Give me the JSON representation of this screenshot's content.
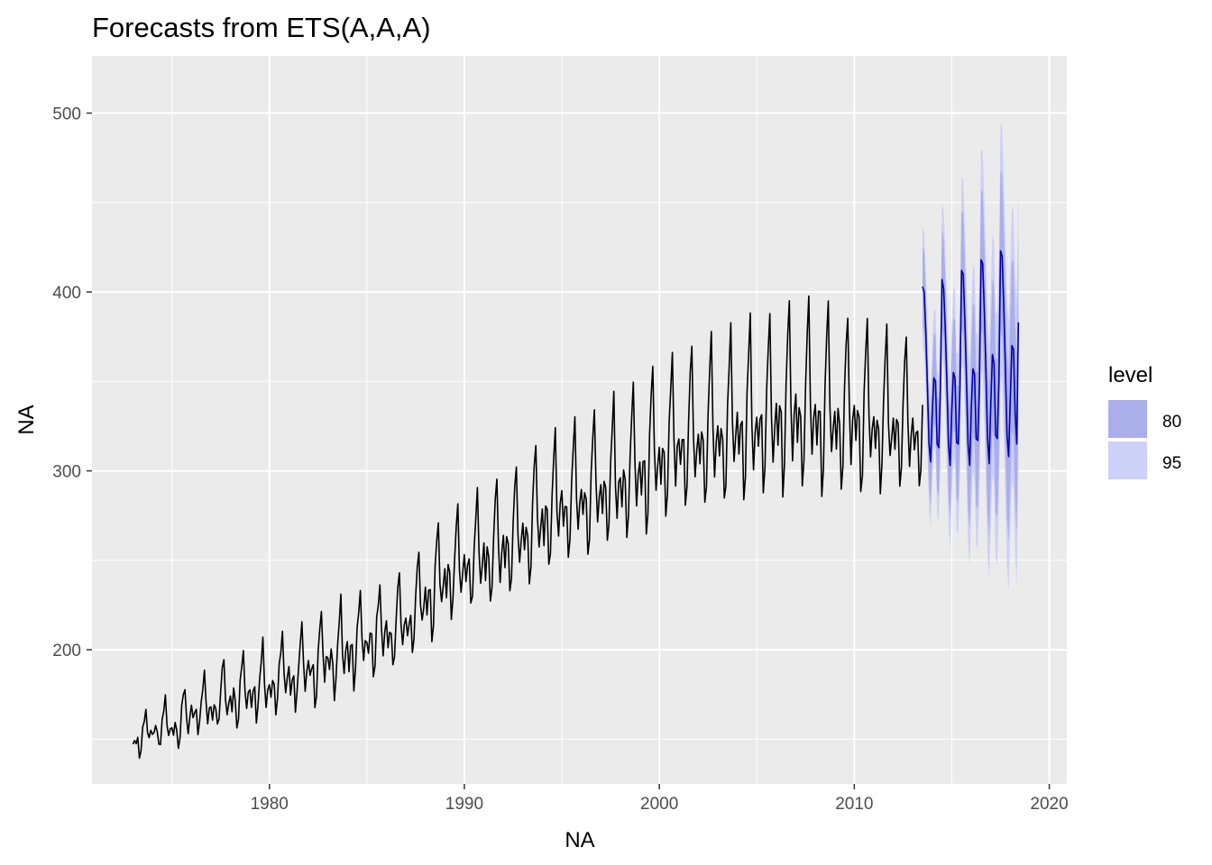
{
  "chart_data": {
    "type": "line",
    "title": "Forecasts from ETS(A,A,A)",
    "xlabel": "NA",
    "ylabel": "NA",
    "xlim": [
      1970.9,
      2020.9
    ],
    "ylim": [
      125,
      532
    ],
    "x_ticks": [
      1980,
      1990,
      2000,
      2010,
      2020
    ],
    "x_tick_labels": [
      "1980",
      "1990",
      "2000",
      "2010",
      "2020"
    ],
    "y_ticks": [
      200,
      300,
      400,
      500
    ],
    "y_tick_labels": [
      "200",
      "300",
      "400",
      "500"
    ],
    "y_minor_ticks": [
      150,
      250,
      350,
      450
    ],
    "x_minor_ticks": [
      1975,
      1985,
      1995,
      2005,
      2015
    ],
    "grid": true,
    "legend": {
      "title": "level",
      "position": "right",
      "entries": [
        {
          "label": "80",
          "color": "#aaaeea"
        },
        {
          "label": "95",
          "color": "#cdd0f7"
        }
      ]
    },
    "colors": {
      "panel_background": "#ebebeb",
      "gridline": "#ffffff",
      "history_line": "#000000",
      "forecast_line": "#0000aa",
      "band_80": "#aaaeea",
      "band_95": "#cdd0f7"
    },
    "history": {
      "start": 1973.0,
      "frequency": 12,
      "monthly_pattern": [
        161,
        154,
        160,
        159,
        146,
        150,
        164,
        172,
        178,
        160,
        152,
        158
      ],
      "anchors": [
        {
          "x": 1973.0,
          "level": 150,
          "amplitude": 0.5
        },
        {
          "x": 1975.0,
          "level": 158,
          "amplitude": 0.55
        },
        {
          "x": 1978.0,
          "level": 175,
          "amplitude": 0.75
        },
        {
          "x": 1981.0,
          "level": 185,
          "amplitude": 0.9
        },
        {
          "x": 1984.0,
          "level": 200,
          "amplitude": 1.0
        },
        {
          "x": 1987.0,
          "level": 215,
          "amplitude": 1.1
        },
        {
          "x": 1989.0,
          "level": 242,
          "amplitude": 1.15
        },
        {
          "x": 1992.0,
          "level": 258,
          "amplitude": 1.35
        },
        {
          "x": 1995.0,
          "level": 282,
          "amplitude": 1.5
        },
        {
          "x": 1998.0,
          "level": 295,
          "amplitude": 1.6
        },
        {
          "x": 2001.0,
          "level": 315,
          "amplitude": 1.75
        },
        {
          "x": 2004.0,
          "level": 325,
          "amplitude": 1.9
        },
        {
          "x": 2007.0,
          "level": 335,
          "amplitude": 2.1
        },
        {
          "x": 2010.0,
          "level": 330,
          "amplitude": 1.9
        },
        {
          "x": 2013.5,
          "level": 323,
          "amplitude": 1.6
        }
      ]
    },
    "forecast": {
      "start": 2013.5,
      "end": 2018.5,
      "frequency": 12,
      "monthly_values": [
        403,
        400,
        378,
        348,
        315,
        305,
        332,
        352,
        350,
        315,
        313,
        345,
        407,
        402,
        380,
        350,
        315,
        303,
        333,
        355,
        352,
        316,
        315,
        347,
        412,
        410,
        385,
        352,
        315,
        303,
        335,
        357,
        354,
        318,
        317,
        349,
        418,
        416,
        390,
        356,
        318,
        304,
        337,
        365,
        360,
        320,
        318,
        350,
        423,
        420,
        392,
        358,
        320,
        308,
        340,
        370,
        368,
        332,
        315,
        383
      ],
      "band_80_halfwidth_start": 22,
      "band_80_halfwidth_end": 50,
      "band_95_halfwidth_start": 33,
      "band_95_halfwidth_end": 80
    }
  }
}
